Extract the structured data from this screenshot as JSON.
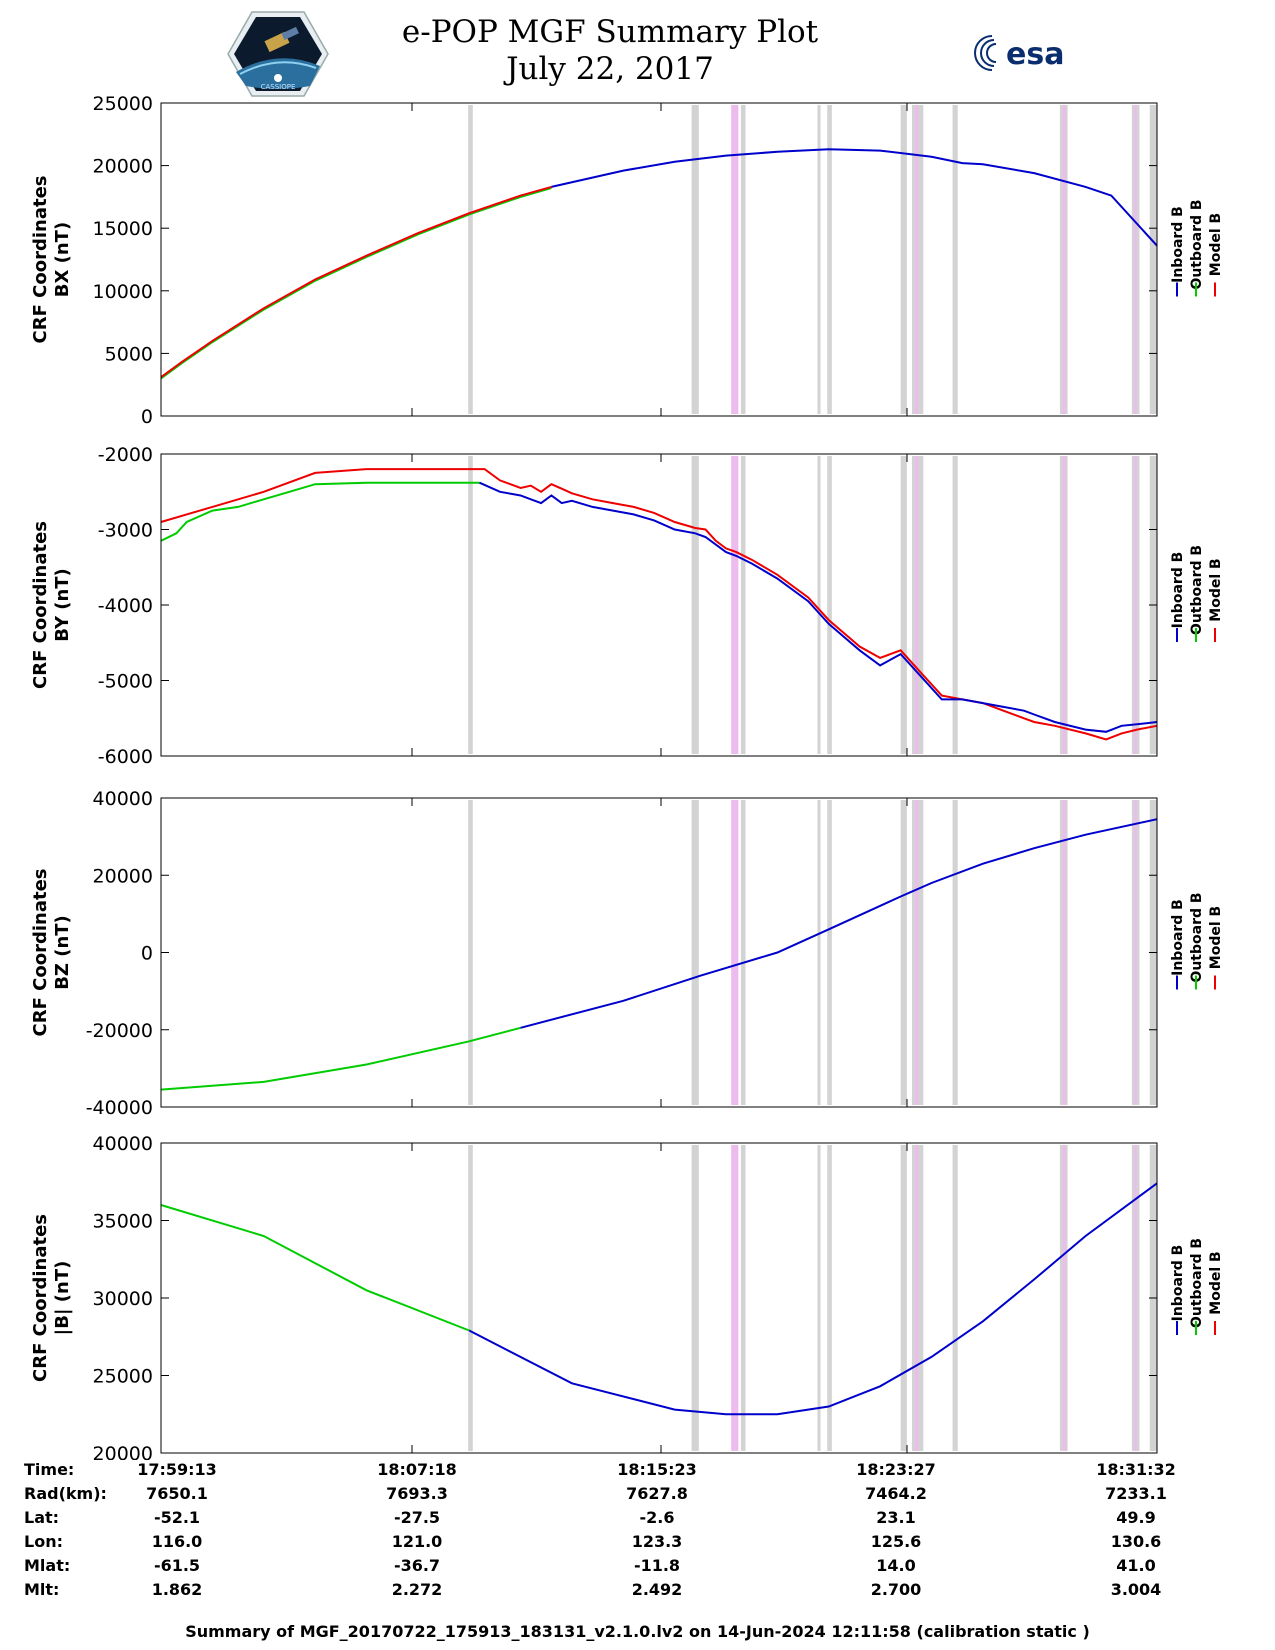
{
  "header": {
    "title_line1": "e-POP MGF Summary Plot",
    "title_line2": "July 22, 2017",
    "logo_left_text": "CASSIOPE",
    "logo_right_text": "esa"
  },
  "legend": [
    "Inboard B",
    "Outboard B",
    "Model B"
  ],
  "colors": {
    "inboard": "#0000cc",
    "outboard": "#00cc00",
    "model": "#ee0000",
    "gray_band": "#d3d3d3",
    "pink_band": "#eebbee"
  },
  "chart_data": [
    {
      "type": "line",
      "ylabel": [
        "CRF Coordinates",
        "BX (nT)"
      ],
      "ylim": [
        0,
        25000
      ],
      "yticks": [
        0,
        5000,
        10000,
        15000,
        20000,
        25000
      ],
      "xlim": [
        0,
        1939
      ],
      "series": [
        {
          "name": "Outboard B",
          "color": "#00cc00",
          "points": [
            [
              0,
              3000
            ],
            [
              40,
              4200
            ],
            [
              100,
              5900
            ],
            [
              200,
              8500
            ],
            [
              300,
              10800
            ],
            [
              400,
              12700
            ],
            [
              500,
              14500
            ],
            [
              600,
              16100
            ],
            [
              700,
              17500
            ],
            [
              760,
              18200
            ]
          ]
        },
        {
          "name": "Model B",
          "color": "#ee0000",
          "points": [
            [
              0,
              3100
            ],
            [
              40,
              4300
            ],
            [
              100,
              6000
            ],
            [
              200,
              8600
            ],
            [
              300,
              10900
            ],
            [
              400,
              12800
            ],
            [
              500,
              14600
            ],
            [
              600,
              16200
            ],
            [
              700,
              17600
            ],
            [
              760,
              18300
            ]
          ]
        },
        {
          "name": "Inboard B",
          "color": "#0000cc",
          "points": [
            [
              760,
              18300
            ],
            [
              900,
              19600
            ],
            [
              1000,
              20300
            ],
            [
              1100,
              20800
            ],
            [
              1200,
              21100
            ],
            [
              1300,
              21300
            ],
            [
              1400,
              21200
            ],
            [
              1500,
              20700
            ],
            [
              1560,
              20200
            ],
            [
              1600,
              20100
            ],
            [
              1700,
              19400
            ],
            [
              1800,
              18300
            ],
            [
              1850,
              17600
            ],
            [
              1939,
              13600
            ]
          ]
        }
      ]
    },
    {
      "type": "line",
      "ylabel": [
        "CRF Coordinates",
        "BY (nT)"
      ],
      "ylim": [
        -6000,
        -2000
      ],
      "yticks": [
        -6000,
        -5000,
        -4000,
        -3000,
        -2000
      ],
      "xlim": [
        0,
        1939
      ],
      "series": [
        {
          "name": "Model B",
          "color": "#ee0000",
          "points": [
            [
              0,
              -2900
            ],
            [
              50,
              -2800
            ],
            [
              100,
              -2700
            ],
            [
              200,
              -2500
            ],
            [
              300,
              -2250
            ],
            [
              400,
              -2200
            ],
            [
              500,
              -2200
            ],
            [
              600,
              -2200
            ],
            [
              630,
              -2200
            ],
            [
              660,
              -2350
            ],
            [
              700,
              -2450
            ],
            [
              720,
              -2420
            ],
            [
              740,
              -2500
            ],
            [
              760,
              -2400
            ],
            [
              780,
              -2460
            ],
            [
              800,
              -2520
            ],
            [
              840,
              -2600
            ],
            [
              880,
              -2650
            ],
            [
              920,
              -2700
            ],
            [
              960,
              -2780
            ],
            [
              1000,
              -2900
            ],
            [
              1040,
              -2980
            ],
            [
              1060,
              -3000
            ],
            [
              1080,
              -3150
            ],
            [
              1100,
              -3250
            ],
            [
              1120,
              -3300
            ],
            [
              1150,
              -3400
            ],
            [
              1200,
              -3600
            ],
            [
              1260,
              -3900
            ],
            [
              1300,
              -4200
            ],
            [
              1360,
              -4550
            ],
            [
              1400,
              -4700
            ],
            [
              1440,
              -4600
            ],
            [
              1480,
              -4900
            ],
            [
              1520,
              -5200
            ],
            [
              1560,
              -5250
            ],
            [
              1600,
              -5300
            ],
            [
              1640,
              -5400
            ],
            [
              1680,
              -5500
            ],
            [
              1700,
              -5550
            ],
            [
              1740,
              -5600
            ],
            [
              1800,
              -5700
            ],
            [
              1840,
              -5780
            ],
            [
              1870,
              -5700
            ],
            [
              1900,
              -5650
            ],
            [
              1939,
              -5600
            ]
          ]
        },
        {
          "name": "Outboard B",
          "color": "#00cc00",
          "points": [
            [
              0,
              -3150
            ],
            [
              30,
              -3050
            ],
            [
              50,
              -2900
            ],
            [
              100,
              -2750
            ],
            [
              150,
              -2700
            ],
            [
              200,
              -2600
            ],
            [
              250,
              -2500
            ],
            [
              300,
              -2400
            ],
            [
              400,
              -2380
            ],
            [
              500,
              -2380
            ],
            [
              600,
              -2380
            ],
            [
              620,
              -2380
            ]
          ]
        },
        {
          "name": "Inboard B",
          "color": "#0000cc",
          "points": [
            [
              620,
              -2380
            ],
            [
              660,
              -2500
            ],
            [
              700,
              -2550
            ],
            [
              720,
              -2600
            ],
            [
              740,
              -2650
            ],
            [
              760,
              -2550
            ],
            [
              780,
              -2650
            ],
            [
              800,
              -2620
            ],
            [
              840,
              -2700
            ],
            [
              880,
              -2750
            ],
            [
              920,
              -2800
            ],
            [
              960,
              -2880
            ],
            [
              1000,
              -3000
            ],
            [
              1040,
              -3050
            ],
            [
              1060,
              -3100
            ],
            [
              1080,
              -3200
            ],
            [
              1100,
              -3300
            ],
            [
              1120,
              -3350
            ],
            [
              1150,
              -3450
            ],
            [
              1200,
              -3650
            ],
            [
              1260,
              -3950
            ],
            [
              1300,
              -4250
            ],
            [
              1360,
              -4600
            ],
            [
              1400,
              -4800
            ],
            [
              1440,
              -4650
            ],
            [
              1480,
              -4950
            ],
            [
              1520,
              -5250
            ],
            [
              1560,
              -5250
            ],
            [
              1600,
              -5300
            ],
            [
              1640,
              -5350
            ],
            [
              1680,
              -5400
            ],
            [
              1700,
              -5450
            ],
            [
              1740,
              -5550
            ],
            [
              1800,
              -5650
            ],
            [
              1840,
              -5680
            ],
            [
              1870,
              -5600
            ],
            [
              1900,
              -5580
            ],
            [
              1939,
              -5550
            ]
          ]
        }
      ]
    },
    {
      "type": "line",
      "ylabel": [
        "CRF Coordinates",
        "BZ (nT)"
      ],
      "ylim": [
        -40000,
        40000
      ],
      "yticks": [
        -40000,
        -20000,
        0,
        20000,
        40000
      ],
      "xlim": [
        0,
        1939
      ],
      "series": [
        {
          "name": "Outboard B",
          "color": "#00cc00",
          "points": [
            [
              0,
              -35500
            ],
            [
              200,
              -33500
            ],
            [
              400,
              -29000
            ],
            [
              600,
              -23000
            ],
            [
              700,
              -19500
            ]
          ]
        },
        {
          "name": "Inboard B",
          "color": "#0000cc",
          "points": [
            [
              700,
              -19500
            ],
            [
              900,
              -12500
            ],
            [
              1050,
              -6000
            ],
            [
              1200,
              0
            ],
            [
              1300,
              6000
            ],
            [
              1440,
              14500
            ],
            [
              1500,
              18000
            ],
            [
              1600,
              23000
            ],
            [
              1700,
              27000
            ],
            [
              1800,
              30500
            ],
            [
              1939,
              34500
            ]
          ]
        }
      ]
    },
    {
      "type": "line",
      "ylabel": [
        "CRF Coordinates",
        "|B| (nT)"
      ],
      "ylim": [
        20000,
        40000
      ],
      "yticks": [
        20000,
        25000,
        30000,
        35000,
        40000
      ],
      "xlim": [
        0,
        1939
      ],
      "series": [
        {
          "name": "Outboard B",
          "color": "#00cc00",
          "points": [
            [
              0,
              36000
            ],
            [
              200,
              34000
            ],
            [
              400,
              30500
            ],
            [
              600,
              27900
            ]
          ]
        },
        {
          "name": "Inboard B",
          "color": "#0000cc",
          "points": [
            [
              600,
              27900
            ],
            [
              800,
              24500
            ],
            [
              1000,
              22800
            ],
            [
              1100,
              22500
            ],
            [
              1200,
              22500
            ],
            [
              1300,
              23000
            ],
            [
              1400,
              24300
            ],
            [
              1500,
              26200
            ],
            [
              1600,
              28500
            ],
            [
              1700,
              31200
            ],
            [
              1800,
              34000
            ],
            [
              1939,
              37400
            ]
          ]
        }
      ]
    }
  ],
  "bands": {
    "gray": [
      [
        598,
        607
      ],
      [
        1033,
        1047
      ],
      [
        1129,
        1138
      ],
      [
        1278,
        1284
      ],
      [
        1297,
        1306
      ],
      [
        1440,
        1452
      ],
      [
        1462,
        1484
      ],
      [
        1541,
        1551
      ],
      [
        1750,
        1765
      ],
      [
        1890,
        1905
      ],
      [
        1925,
        1939
      ]
    ],
    "pink": [
      [
        1110,
        1124
      ],
      [
        1468,
        1474
      ],
      [
        1756,
        1762
      ],
      [
        1895,
        1900
      ]
    ]
  },
  "time_axis": {
    "labels": [
      "Time:",
      "Rad(km):",
      "Lat:",
      "Lon:",
      "Mlat:",
      "Mlt:"
    ],
    "columns": [
      {
        "time": "17:59:13",
        "rad": "7650.1",
        "lat": "-52.1",
        "lon": "116.0",
        "mlat": "-61.5",
        "mlt": "1.862"
      },
      {
        "time": "18:07:18",
        "rad": "7693.3",
        "lat": "-27.5",
        "lon": "121.0",
        "mlat": "-36.7",
        "mlt": "2.272"
      },
      {
        "time": "18:15:23",
        "rad": "7627.8",
        "lat": "-2.6",
        "lon": "123.3",
        "mlat": "-11.8",
        "mlt": "2.492"
      },
      {
        "time": "18:23:27",
        "rad": "7464.2",
        "lat": "23.1",
        "lon": "125.6",
        "mlat": "14.0",
        "mlt": "2.700"
      },
      {
        "time": "18:31:32",
        "rad": "7233.1",
        "lat": "49.9",
        "lon": "130.6",
        "mlat": "41.0",
        "mlt": "3.004"
      }
    ]
  },
  "footer": "Summary of MGF_20170722_175913_183131_v2.1.0.lv2 on 14-Jun-2024 12:11:58 (calibration static )"
}
